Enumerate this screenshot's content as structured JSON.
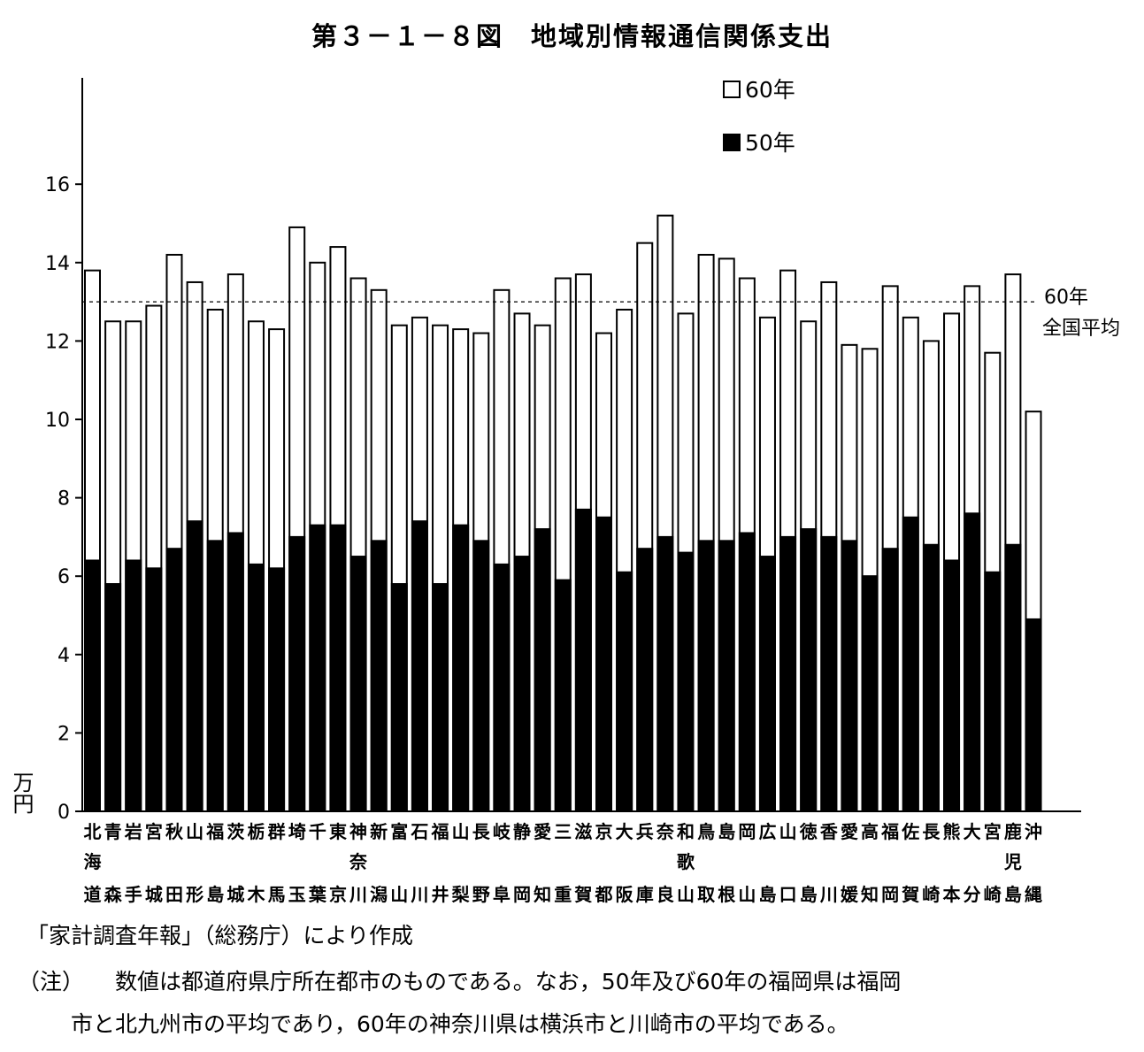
{
  "figure": {
    "title": "第３－１－８図　地域別情報通信関係支出",
    "source": "「家計調査年報」（総務庁）により作成",
    "note_head": "（注）",
    "note_line1": "数値は都道府県庁所在都市のものである。なお，50年及び60年の福岡県は福岡",
    "note_line2": "市と北九州市の平均であり，60年の神奈川県は横浜市と川崎市の平均である。"
  },
  "chart_data": {
    "type": "bar",
    "stacked": "overlay",
    "ylabel": "万円",
    "ylim": [
      0,
      18
    ],
    "yticks": [
      0,
      2,
      4,
      6,
      8,
      10,
      12,
      14,
      16
    ],
    "grid": false,
    "legend_position": "top-right",
    "categories": [
      "北海道",
      "青森",
      "岩手",
      "宮城",
      "秋田",
      "山形",
      "福島",
      "茨城",
      "栃木",
      "群馬",
      "埼玉",
      "千葉",
      "東京",
      "神奈川",
      "新潟",
      "富山",
      "石川",
      "福井",
      "山梨",
      "長野",
      "岐阜",
      "静岡",
      "愛知",
      "三重",
      "滋賀",
      "京都",
      "大阪",
      "兵庫",
      "奈良",
      "和歌山",
      "鳥取",
      "島根",
      "岡山",
      "広島",
      "山口",
      "徳島",
      "香川",
      "愛媛",
      "高知",
      "福岡",
      "佐賀",
      "長崎",
      "熊本",
      "大分",
      "宮崎",
      "鹿児島",
      "沖縄"
    ],
    "series": [
      {
        "name": "60年",
        "color": "#ffffff",
        "values": [
          13.8,
          12.5,
          12.5,
          12.9,
          14.2,
          13.5,
          12.8,
          13.7,
          12.5,
          12.3,
          14.9,
          14.0,
          14.4,
          13.6,
          13.3,
          12.4,
          12.6,
          12.4,
          12.3,
          12.2,
          13.3,
          12.7,
          12.4,
          13.6,
          13.7,
          12.2,
          12.8,
          14.5,
          15.2,
          12.7,
          14.2,
          14.1,
          13.6,
          12.6,
          13.8,
          12.5,
          13.5,
          11.9,
          11.8,
          13.4,
          12.6,
          12.0,
          12.7,
          13.4,
          11.7,
          13.7,
          10.2
        ]
      },
      {
        "name": "50年",
        "color": "#000000",
        "values": [
          6.4,
          5.8,
          6.4,
          6.2,
          6.7,
          7.4,
          6.9,
          7.1,
          6.3,
          6.2,
          7.0,
          7.3,
          7.3,
          6.5,
          6.9,
          5.8,
          7.4,
          5.8,
          7.3,
          6.9,
          6.3,
          6.5,
          7.2,
          5.9,
          7.7,
          7.5,
          6.1,
          6.7,
          7.0,
          6.6,
          6.9,
          6.9,
          7.1,
          6.5,
          7.0,
          7.2,
          7.0,
          6.9,
          6.0,
          6.7,
          7.5,
          6.8,
          6.4,
          7.6,
          6.1,
          6.8,
          4.9
        ]
      }
    ],
    "reference_line": {
      "value": 13.0,
      "label_1": "60年",
      "label_2": "全国平均"
    }
  }
}
